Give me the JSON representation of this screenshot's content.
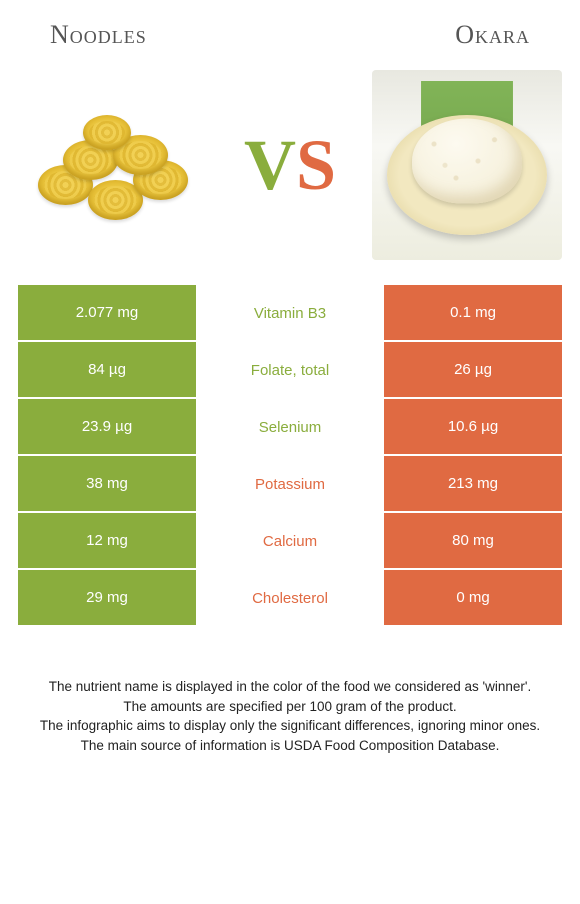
{
  "header": {
    "left_title": "Noodles",
    "right_title": "Okara"
  },
  "vs": {
    "v": "V",
    "s": "S"
  },
  "colors": {
    "green": "#8aad3d",
    "orange": "#e06a42",
    "background": "#ffffff",
    "text": "#333333"
  },
  "table": {
    "rows": [
      {
        "left": "2.077 mg",
        "label": "Vitamin B3",
        "right": "0.1 mg",
        "winner": "left"
      },
      {
        "left": "84 µg",
        "label": "Folate, total",
        "right": "26 µg",
        "winner": "left"
      },
      {
        "left": "23.9 µg",
        "label": "Selenium",
        "right": "10.6 µg",
        "winner": "left"
      },
      {
        "left": "38 mg",
        "label": "Potassium",
        "right": "213 mg",
        "winner": "right"
      },
      {
        "left": "12 mg",
        "label": "Calcium",
        "right": "80 mg",
        "winner": "right"
      },
      {
        "left": "29 mg",
        "label": "Cholesterol",
        "right": "0 mg",
        "winner": "right"
      }
    ]
  },
  "footer": {
    "line1": "The nutrient name is displayed in the color of the food we considered as 'winner'.",
    "line2": "The amounts are specified per 100 gram of the product.",
    "line3": "The infographic aims to display only the significant differences, ignoring minor ones.",
    "line4": "The main source of information is USDA Food Composition Database."
  }
}
